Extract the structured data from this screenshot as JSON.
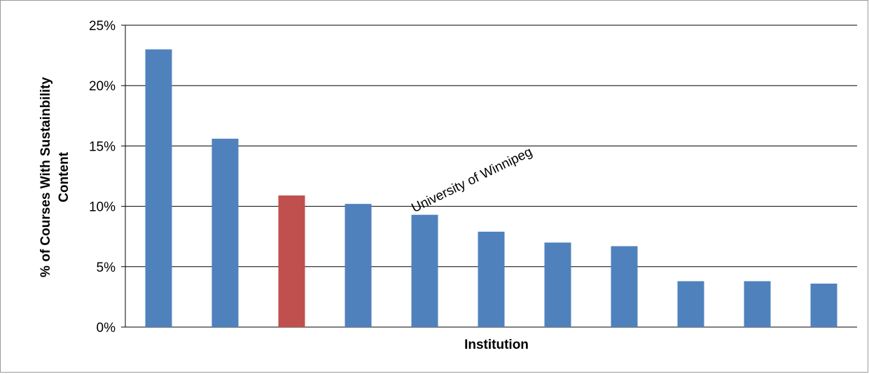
{
  "chart_data": {
    "type": "bar",
    "title": "",
    "xlabel": "Institution",
    "ylabel_lines": [
      "% of  Courses With Sustainbility",
      "Content"
    ],
    "ylim": [
      0,
      25
    ],
    "yticks": [
      "0%",
      "5%",
      "10%",
      "15%",
      "20%",
      "25%"
    ],
    "categories": [
      "",
      "",
      "",
      "",
      "",
      "",
      "",
      "",
      "",
      "",
      ""
    ],
    "values": [
      23.0,
      15.6,
      10.9,
      10.2,
      9.3,
      7.9,
      7.0,
      6.7,
      3.8,
      3.8,
      3.6
    ],
    "highlight_index": 2,
    "colors": {
      "bar": "#4F81BD",
      "highlight": "#C0504D",
      "grid": "#000000"
    },
    "grid": true,
    "annotation": {
      "text": "University of Winnipeg",
      "bar_index": 4
    }
  }
}
